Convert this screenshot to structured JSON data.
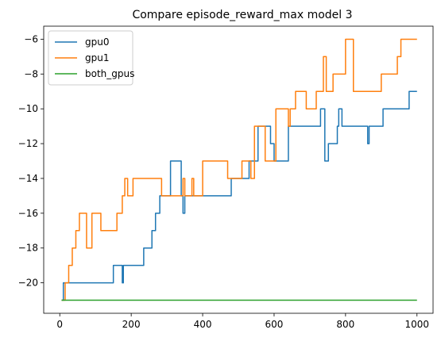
{
  "chart_data": {
    "type": "line",
    "title": "Compare episode_reward_max model 3",
    "xlabel": "",
    "ylabel": "",
    "xlim": [
      -45,
      1045
    ],
    "ylim": [
      -21.75,
      -5.25
    ],
    "xticks": [
      0,
      200,
      400,
      600,
      800,
      1000
    ],
    "yticks": [
      -20,
      -18,
      -16,
      -14,
      -12,
      -10,
      -8,
      -6
    ],
    "grid": false,
    "legend": "top-left",
    "series": [
      {
        "name": "gpu0",
        "color": "#1f77b4",
        "x": [
          5,
          10,
          10,
          150,
          150,
          175,
          175,
          178,
          178,
          235,
          235,
          258,
          258,
          268,
          268,
          280,
          280,
          310,
          310,
          340,
          340,
          345,
          345,
          350,
          350,
          480,
          480,
          530,
          530,
          555,
          555,
          590,
          590,
          600,
          600,
          640,
          640,
          730,
          730,
          742,
          742,
          752,
          752,
          777,
          777,
          781,
          781,
          790,
          790,
          862,
          862,
          866,
          866,
          905,
          905,
          978,
          978,
          1000
        ],
        "y": [
          -21,
          -21,
          -20,
          -20,
          -19,
          -19,
          -20,
          -20,
          -19,
          -19,
          -18,
          -18,
          -17,
          -17,
          -16,
          -16,
          -15,
          -15,
          -13,
          -13,
          -15,
          -15,
          -16,
          -16,
          -15,
          -15,
          -14,
          -14,
          -13,
          -13,
          -11,
          -11,
          -12,
          -12,
          -13,
          -13,
          -11,
          -11,
          -10,
          -10,
          -13,
          -13,
          -12,
          -12,
          -11,
          -11,
          -10,
          -10,
          -11,
          -11,
          -12,
          -12,
          -11,
          -11,
          -10,
          -10,
          -9,
          -9
        ]
      },
      {
        "name": "gpu1",
        "color": "#ff7f0e",
        "x": [
          5,
          15,
          15,
          25,
          25,
          35,
          35,
          45,
          45,
          55,
          55,
          75,
          75,
          90,
          90,
          115,
          115,
          160,
          160,
          175,
          175,
          182,
          182,
          190,
          190,
          205,
          205,
          285,
          285,
          345,
          345,
          350,
          350,
          370,
          370,
          375,
          375,
          400,
          400,
          470,
          470,
          510,
          510,
          535,
          535,
          545,
          545,
          575,
          575,
          605,
          605,
          640,
          640,
          645,
          645,
          660,
          660,
          690,
          690,
          718,
          718,
          738,
          738,
          746,
          746,
          765,
          765,
          800,
          800,
          822,
          822,
          900,
          900,
          945,
          945,
          955,
          955,
          970,
          970,
          1000
        ],
        "y": [
          -21,
          -21,
          -20,
          -20,
          -19,
          -19,
          -18,
          -18,
          -17,
          -17,
          -16,
          -16,
          -18,
          -18,
          -16,
          -16,
          -17,
          -17,
          -16,
          -16,
          -15,
          -15,
          -14,
          -14,
          -15,
          -15,
          -14,
          -14,
          -15,
          -15,
          -14,
          -14,
          -15,
          -15,
          -14,
          -14,
          -15,
          -15,
          -13,
          -13,
          -14,
          -14,
          -13,
          -13,
          -14,
          -14,
          -11,
          -11,
          -13,
          -13,
          -10,
          -10,
          -11,
          -11,
          -10,
          -10,
          -9,
          -9,
          -10,
          -10,
          -9,
          -9,
          -7,
          -7,
          -9,
          -9,
          -8,
          -8,
          -6,
          -6,
          -9,
          -9,
          -8,
          -8,
          -7,
          -7,
          -6,
          -6,
          -6,
          -6
        ]
      },
      {
        "name": "both_gpus",
        "color": "#2ca02c",
        "x": [
          5,
          1000
        ],
        "y": [
          -21,
          -21
        ]
      }
    ]
  }
}
